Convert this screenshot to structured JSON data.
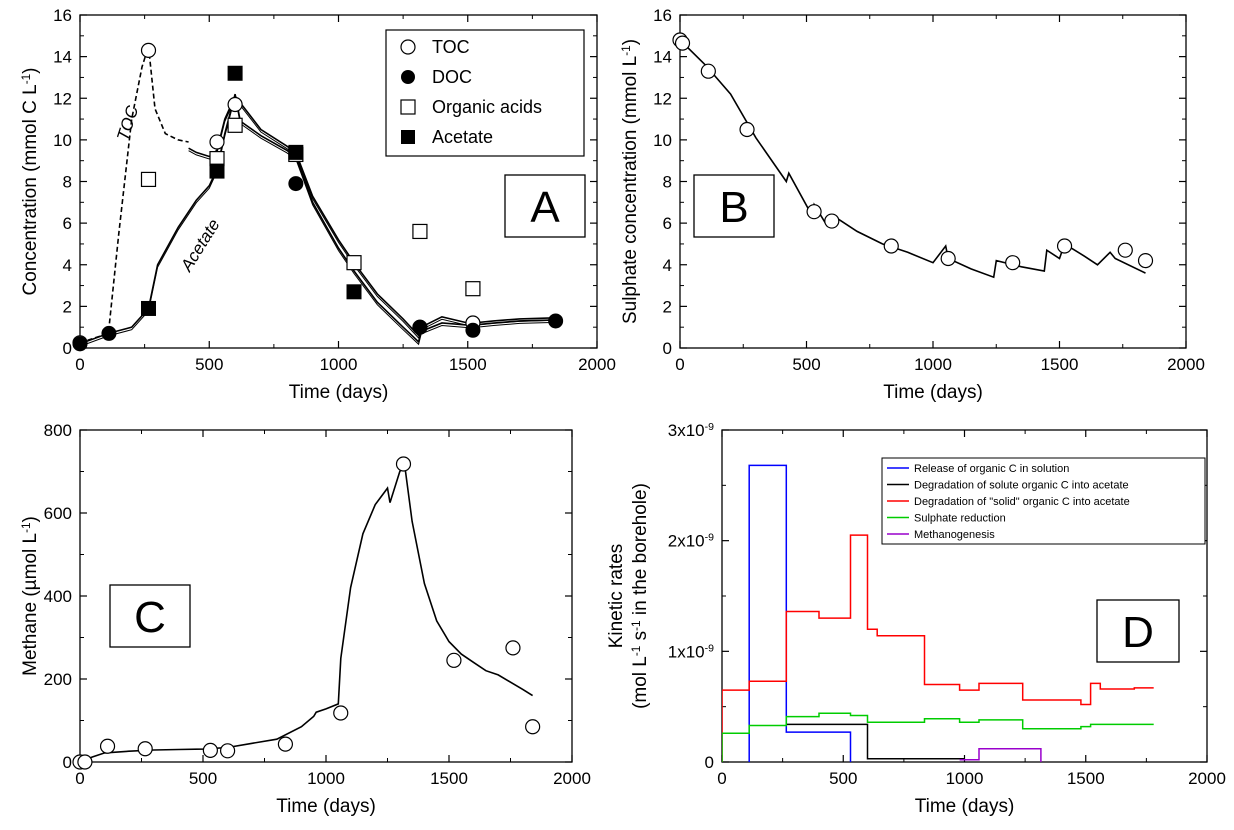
{
  "colors": {
    "release": "#0000ff",
    "degradation_solute": "#000000",
    "degradation_solid": "#ff0000",
    "sulphate_reduction": "#00cc00",
    "methanogenesis": "#9900cc"
  },
  "chart_data": [
    {
      "panel": "A",
      "type": "scatter",
      "xlabel": "Time (days)",
      "ylabel": "Concentration (mmol C L-1)",
      "xlim": [
        0,
        2000
      ],
      "ylim": [
        0,
        16
      ],
      "xticks": [
        "0",
        "500",
        "1000",
        "1500",
        "2000"
      ],
      "yticks": [
        "0",
        "2",
        "4",
        "6",
        "8",
        "10",
        "12",
        "14",
        "16"
      ],
      "legend": [
        "TOC",
        "DOC",
        "Organic acids",
        "Acetate"
      ],
      "legend_position": "top-right",
      "annotations": [
        "TOC",
        "Acetate"
      ],
      "series": [
        {
          "name": "TOC",
          "marker": "open-circle",
          "x": [
            0,
            265,
            530,
            600,
            1315,
            1520
          ],
          "y": [
            0.25,
            14.3,
            9.9,
            11.7,
            1.0,
            1.2
          ]
        },
        {
          "name": "DOC",
          "marker": "filled-circle",
          "x": [
            0,
            112,
            835,
            1315,
            1520,
            1840
          ],
          "y": [
            0.2,
            0.7,
            7.9,
            1.0,
            0.85,
            1.3
          ]
        },
        {
          "name": "Organic acids",
          "marker": "open-square",
          "x": [
            265,
            530,
            600,
            835,
            1060,
            1315,
            1520
          ],
          "y": [
            8.1,
            9.1,
            10.7,
            9.3,
            4.1,
            5.6,
            2.85
          ]
        },
        {
          "name": "Acetate",
          "marker": "filled-square",
          "x": [
            265,
            530,
            600,
            835,
            1060
          ],
          "y": [
            1.9,
            8.5,
            13.2,
            9.4,
            2.7
          ]
        },
        {
          "name": "TOC",
          "kind": "line",
          "style": "dashed",
          "x": [
            0,
            110,
            150,
            200,
            240,
            265,
            290,
            330,
            380,
            420
          ],
          "y": [
            0.25,
            0.7,
            5.5,
            11.0,
            13.5,
            14.5,
            11.5,
            10.3,
            10.0,
            9.9
          ]
        },
        {
          "name": "TOC",
          "kind": "line",
          "style": "solid",
          "x": [
            420,
            450,
            500,
            530,
            560,
            600,
            650,
            700,
            800,
            835,
            900,
            1000,
            1060,
            1150,
            1250,
            1310,
            1320,
            1400,
            1500,
            1520,
            1600,
            1700,
            1840
          ],
          "y": [
            9.6,
            9.4,
            9.2,
            9.5,
            11.0,
            12.1,
            11.3,
            10.5,
            9.7,
            9.4,
            7.3,
            5.2,
            4.1,
            2.6,
            1.4,
            0.6,
            1.0,
            1.5,
            1.2,
            1.2,
            1.3,
            1.4,
            1.45
          ]
        },
        {
          "name": "Acetate",
          "kind": "line",
          "style": "solid",
          "x": [
            0,
            110,
            200,
            265,
            300,
            380,
            450,
            500,
            530,
            560,
            600,
            620,
            700,
            800,
            835,
            900,
            1000,
            1060,
            1150,
            1250,
            1310,
            1320,
            1400,
            1500,
            1520,
            1600,
            1700,
            1840
          ],
          "y": [
            0.2,
            0.7,
            1.0,
            1.9,
            4.0,
            5.8,
            7.1,
            7.8,
            8.6,
            10.3,
            12.2,
            10.9,
            10.2,
            9.5,
            9.2,
            7.0,
            4.8,
            3.7,
            2.2,
            1.0,
            0.3,
            0.8,
            1.2,
            1.1,
            1.1,
            1.2,
            1.3,
            1.35
          ]
        }
      ]
    },
    {
      "panel": "B",
      "type": "scatter",
      "xlabel": "Time (days)",
      "ylabel": "Sulphate concentration (mmol L-1)",
      "xlim": [
        0,
        2000
      ],
      "ylim": [
        0,
        16
      ],
      "xticks": [
        "0",
        "500",
        "1000",
        "1500",
        "2000"
      ],
      "yticks": [
        "0",
        "2",
        "4",
        "6",
        "8",
        "10",
        "12",
        "14",
        "16"
      ],
      "series": [
        {
          "name": "",
          "marker": "open-circle",
          "x": [
            0,
            10,
            112,
            265,
            530,
            600,
            835,
            1060,
            1315,
            1520,
            1760,
            1840
          ],
          "y": [
            14.8,
            14.65,
            13.3,
            10.5,
            6.55,
            6.1,
            4.9,
            4.3,
            4.1,
            4.9,
            4.7,
            4.2
          ]
        },
        {
          "name": "",
          "kind": "line",
          "style": "solid",
          "x": [
            0,
            100,
            200,
            300,
            420,
            430,
            520,
            530,
            580,
            600,
            700,
            800,
            900,
            1000,
            1050,
            1060,
            1150,
            1240,
            1250,
            1350,
            1440,
            1450,
            1500,
            1520,
            1600,
            1650,
            1700,
            1720,
            1840
          ],
          "y": [
            14.8,
            13.6,
            12.2,
            10.1,
            8.0,
            8.4,
            6.4,
            6.9,
            5.9,
            6.4,
            5.6,
            5.0,
            4.6,
            4.1,
            4.9,
            4.3,
            3.8,
            3.4,
            4.2,
            3.9,
            3.7,
            4.7,
            4.3,
            5.0,
            4.4,
            4.0,
            4.6,
            4.3,
            3.6
          ]
        }
      ]
    },
    {
      "panel": "C",
      "type": "scatter",
      "xlabel": "Time (days)",
      "ylabel": "Methane (µmol L-1)",
      "xlim": [
        0,
        2000
      ],
      "ylim": [
        0,
        800
      ],
      "xticks": [
        "0",
        "500",
        "1000",
        "1500",
        "2000"
      ],
      "yticks": [
        "0",
        "200",
        "400",
        "600",
        "800"
      ],
      "series": [
        {
          "name": "",
          "marker": "open-circle",
          "x": [
            0,
            20,
            112,
            265,
            530,
            600,
            835,
            1060,
            1315,
            1520,
            1760,
            1840
          ],
          "y": [
            0,
            0,
            38,
            32,
            28,
            27,
            43,
            118,
            718,
            245,
            275,
            85
          ]
        },
        {
          "name": "",
          "kind": "line",
          "style": "solid",
          "x": [
            0,
            50,
            100,
            200,
            300,
            400,
            500,
            600,
            700,
            800,
            900,
            950,
            960,
            1000,
            1050,
            1060,
            1100,
            1150,
            1200,
            1250,
            1260,
            1300,
            1320,
            1350,
            1400,
            1450,
            1500,
            1550,
            1600,
            1650,
            1700,
            1800,
            1840
          ],
          "y": [
            0,
            12,
            22,
            26,
            29,
            30,
            31,
            35,
            45,
            55,
            85,
            110,
            120,
            128,
            140,
            250,
            420,
            550,
            620,
            660,
            625,
            700,
            715,
            580,
            430,
            340,
            290,
            260,
            240,
            220,
            210,
            175,
            160
          ]
        }
      ]
    },
    {
      "panel": "D",
      "type": "line",
      "xlabel": "Time (days)",
      "ylabel": "Kinetic rates (mol L-1 s-1 in the borehole)",
      "ylabel_line1": "Kinetic rates",
      "ylabel_line2": "(mol L-1 s-1 in the borehole)",
      "xlim": [
        0,
        2000
      ],
      "ylim": [
        0,
        3e-09
      ],
      "xticks": [
        "0",
        "500",
        "1000",
        "1500",
        "2000"
      ],
      "yticks": [
        "0",
        "1x10-9",
        "2x10-9",
        "3x10-9"
      ],
      "legend_position": "top-right",
      "series": [
        {
          "name": "Release of organic C in solution",
          "color_key": "release",
          "step": true,
          "x": [
            112,
            112,
            265,
            265,
            530,
            530
          ],
          "y": [
            0,
            2.68e-09,
            2.68e-09,
            2.7e-10,
            2.7e-10,
            0
          ]
        },
        {
          "name": "Degradation of solute organic C into acetate",
          "color_key": "degradation_solute",
          "step": true,
          "x": [
            265,
            600,
            600,
            1000
          ],
          "y": [
            3.4e-10,
            3.4e-10,
            3e-11,
            3e-11
          ]
        },
        {
          "name": "Degradation of \"solid\" organic C into acetate",
          "color_key": "degradation_solid",
          "step": true,
          "x": [
            0,
            0,
            112,
            112,
            265,
            265,
            400,
            400,
            530,
            530,
            600,
            600,
            640,
            640,
            835,
            835,
            980,
            980,
            1060,
            1060,
            1240,
            1240,
            1480,
            1480,
            1520,
            1520,
            1560,
            1560,
            1700,
            1700,
            1780
          ],
          "y": [
            0,
            6.5e-10,
            6.5e-10,
            7.3e-10,
            7.3e-10,
            1.36e-09,
            1.36e-09,
            1.3e-09,
            1.3e-09,
            2.05e-09,
            2.05e-09,
            1.2e-09,
            1.2e-09,
            1.14e-09,
            1.14e-09,
            7e-10,
            7e-10,
            6.5e-10,
            6.5e-10,
            7.1e-10,
            7.1e-10,
            5.6e-10,
            5.6e-10,
            5.2e-10,
            5.2e-10,
            7.1e-10,
            7.1e-10,
            6.6e-10,
            6.6e-10,
            6.7e-10,
            6.7e-10
          ]
        },
        {
          "name": "Sulphate reduction",
          "color_key": "sulphate_reduction",
          "step": true,
          "x": [
            0,
            0,
            112,
            112,
            265,
            265,
            400,
            400,
            530,
            530,
            600,
            600,
            835,
            835,
            980,
            980,
            1060,
            1060,
            1240,
            1240,
            1480,
            1480,
            1520,
            1520,
            1780
          ],
          "y": [
            0,
            2.6e-10,
            2.6e-10,
            3.3e-10,
            3.3e-10,
            4.1e-10,
            4.1e-10,
            4.4e-10,
            4.4e-10,
            4.2e-10,
            4.2e-10,
            3.6e-10,
            3.6e-10,
            3.9e-10,
            3.9e-10,
            3.6e-10,
            3.6e-10,
            3.8e-10,
            3.8e-10,
            3e-10,
            3e-10,
            3.2e-10,
            3.2e-10,
            3.4e-10,
            3.4e-10
          ]
        },
        {
          "name": "Methanogenesis",
          "color_key": "methanogenesis",
          "step": true,
          "x": [
            980,
            1060,
            1060,
            1315,
            1315
          ],
          "y": [
            2e-11,
            2e-11,
            1.2e-10,
            1.2e-10,
            0
          ]
        }
      ]
    }
  ]
}
